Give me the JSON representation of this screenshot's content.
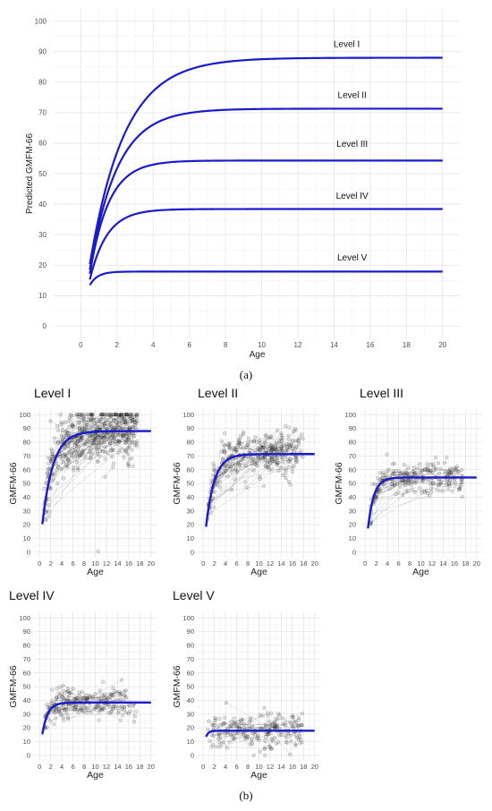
{
  "figure": {
    "caption_a": "(a)",
    "caption_b": "(b)"
  },
  "chart_data": [
    {
      "type": "line",
      "panel": "a",
      "title": "",
      "xlabel": "Age",
      "ylabel": "Predicted GMFM-66",
      "xlim": [
        -1.5,
        21
      ],
      "ylim": [
        -4,
        104
      ],
      "xticks": [
        0,
        2,
        4,
        6,
        8,
        10,
        12,
        14,
        16,
        18,
        20
      ],
      "yticks": [
        0,
        10,
        20,
        30,
        40,
        50,
        60,
        70,
        80,
        90,
        100
      ],
      "grid": true,
      "series": [
        {
          "name": "Level I",
          "line_color": "#1a1acd",
          "start": 20.3,
          "plateau": 88.0,
          "rate": 0.52,
          "x_start": 0.5,
          "x_end": 20
        },
        {
          "name": "Level II",
          "line_color": "#1a1acd",
          "start": 18.5,
          "plateau": 71.3,
          "rate": 0.66,
          "x_start": 0.5,
          "x_end": 20
        },
        {
          "name": "Level III",
          "line_color": "#1a1acd",
          "start": 17.2,
          "plateau": 54.3,
          "rate": 0.95,
          "x_start": 0.5,
          "x_end": 20
        },
        {
          "name": "Level IV",
          "line_color": "#1a1acd",
          "start": 15.3,
          "plateau": 38.4,
          "rate": 1.05,
          "x_start": 0.5,
          "x_end": 20
        },
        {
          "name": "Level V",
          "line_color": "#1a1acd",
          "start": 13.5,
          "plateau": 17.9,
          "rate": 2.3,
          "x_start": 0.5,
          "x_end": 20
        }
      ],
      "line_labels": [
        {
          "text": "Level I",
          "x": 14.7,
          "y": 91.5
        },
        {
          "text": "Level II",
          "x": 15.0,
          "y": 74.8
        },
        {
          "text": "Level III",
          "x": 15.0,
          "y": 58.8
        },
        {
          "text": "Level IV",
          "x": 15.0,
          "y": 41.8
        },
        {
          "text": "Level V",
          "x": 15.0,
          "y": 21.5
        }
      ]
    },
    {
      "type": "scatter",
      "panel": "b",
      "title": "Level I",
      "xlabel": "Age",
      "ylabel": "GMFM-66",
      "xlim": [
        -1,
        21
      ],
      "ylim": [
        -4,
        104
      ],
      "xticks": [
        0,
        2,
        4,
        6,
        8,
        10,
        12,
        14,
        16,
        18,
        20
      ],
      "yticks": [
        0,
        10,
        20,
        30,
        40,
        50,
        60,
        70,
        80,
        90,
        100
      ],
      "grid": true,
      "fit": {
        "start": 20.3,
        "plateau": 88.0,
        "rate": 0.52,
        "x_start": 0.5,
        "x_end": 20,
        "line_color": "#1a1acd"
      },
      "points": {
        "count": 520,
        "x_range": [
          0.8,
          17.5
        ],
        "spread": 11,
        "cap": 100,
        "floor": 0,
        "seed": 11,
        "outlier": [
          10.5,
          0.5
        ]
      }
    },
    {
      "type": "scatter",
      "panel": "b",
      "title": "Level II",
      "xlabel": "Age",
      "ylabel": "GMFM-66",
      "xlim": [
        -1,
        21
      ],
      "ylim": [
        -4,
        104
      ],
      "xticks": [
        0,
        2,
        4,
        6,
        8,
        10,
        12,
        14,
        16,
        18,
        20
      ],
      "yticks": [
        0,
        10,
        20,
        30,
        40,
        50,
        60,
        70,
        80,
        90,
        100
      ],
      "grid": true,
      "fit": {
        "start": 18.5,
        "plateau": 71.3,
        "rate": 0.66,
        "x_start": 0.5,
        "x_end": 20,
        "line_color": "#1a1acd"
      },
      "points": {
        "count": 330,
        "x_range": [
          0.8,
          18
        ],
        "spread": 8,
        "cap": 100,
        "floor": 0,
        "seed": 23
      }
    },
    {
      "type": "scatter",
      "panel": "b",
      "title": "Level III",
      "xlabel": "Age",
      "ylabel": "GMFM-66",
      "xlim": [
        -1,
        21
      ],
      "ylim": [
        -4,
        104
      ],
      "xticks": [
        0,
        2,
        4,
        6,
        8,
        10,
        12,
        14,
        16,
        18,
        20
      ],
      "yticks": [
        0,
        10,
        20,
        30,
        40,
        50,
        60,
        70,
        80,
        90,
        100
      ],
      "grid": true,
      "fit": {
        "start": 17.2,
        "plateau": 54.3,
        "rate": 0.95,
        "x_start": 0.5,
        "x_end": 20,
        "line_color": "#1a1acd"
      },
      "points": {
        "count": 240,
        "x_range": [
          0.8,
          17.5
        ],
        "spread": 6,
        "cap": 100,
        "floor": 0,
        "seed": 37
      }
    },
    {
      "type": "scatter",
      "panel": "b",
      "title": "Level IV",
      "xlabel": "Age",
      "ylabel": "GMFM-66",
      "xlim": [
        -1,
        21
      ],
      "ylim": [
        -4,
        104
      ],
      "xticks": [
        0,
        2,
        4,
        6,
        8,
        10,
        12,
        14,
        16,
        18,
        20
      ],
      "yticks": [
        0,
        10,
        20,
        30,
        40,
        50,
        60,
        70,
        80,
        90,
        100
      ],
      "grid": true,
      "fit": {
        "start": 15.3,
        "plateau": 38.4,
        "rate": 1.05,
        "x_start": 0.5,
        "x_end": 20,
        "line_color": "#1a1acd"
      },
      "points": {
        "count": 230,
        "x_range": [
          0.8,
          17.5
        ],
        "spread": 6,
        "cap": 100,
        "floor": 0,
        "seed": 53
      }
    },
    {
      "type": "scatter",
      "panel": "b",
      "title": "Level V",
      "xlabel": "Age",
      "ylabel": "GMFM-66",
      "xlim": [
        -1,
        21
      ],
      "ylim": [
        -4,
        104
      ],
      "xticks": [
        0,
        2,
        4,
        6,
        8,
        10,
        12,
        14,
        16,
        18,
        20
      ],
      "yticks": [
        0,
        10,
        20,
        30,
        40,
        50,
        60,
        70,
        80,
        90,
        100
      ],
      "grid": true,
      "fit": {
        "start": 13.5,
        "plateau": 17.9,
        "rate": 2.3,
        "x_start": 0.5,
        "x_end": 20,
        "line_color": "#1a1acd"
      },
      "points": {
        "count": 210,
        "x_range": [
          0.8,
          18
        ],
        "spread": 7,
        "cap": 100,
        "floor": 0,
        "seed": 71
      }
    }
  ]
}
